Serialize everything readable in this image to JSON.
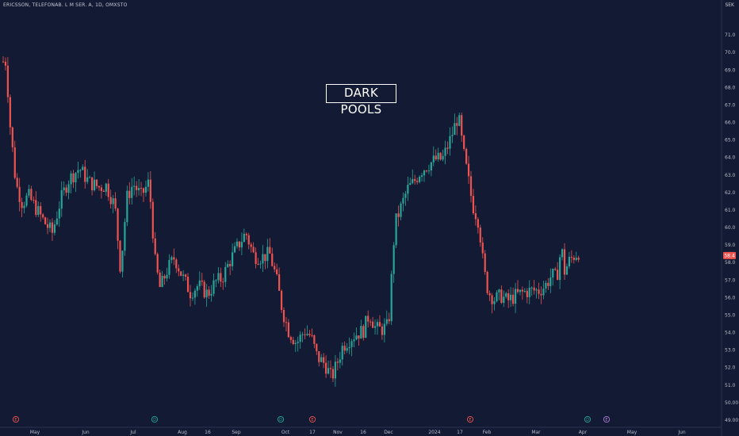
{
  "header": {
    "symbol_line": "ERICSSON, TELEFONAB. L M SER. A, 1D, OMXSTO",
    "currency": "SEK"
  },
  "annotation": {
    "text": "DARK POOLS"
  },
  "last_price": {
    "label": "58.4",
    "value": 58.4,
    "color": "#ef5350"
  },
  "colors": {
    "up": "#26a69a",
    "down": "#ef5350",
    "background": "#131a33"
  },
  "chart_data": {
    "type": "candlestick",
    "title": "",
    "xlabel": "",
    "ylabel": "",
    "ylim": [
      49,
      72
    ],
    "yticks": [
      49.0,
      50.0,
      51.0,
      52.0,
      53.0,
      54.0,
      55.0,
      56.0,
      57.0,
      58.0,
      59.0,
      60.0,
      61.0,
      62.0,
      63.0,
      64.0,
      65.0,
      66.0,
      67.0,
      68.0,
      69.0,
      70.0,
      71.0
    ],
    "ytick_labels": [
      "49.00",
      "50.00",
      "51.0",
      "52.0",
      "53.0",
      "54.0",
      "55.0",
      "56.0",
      "57.0",
      "58.0",
      "59.0",
      "60.0",
      "61.0",
      "62.0",
      "63.0",
      "64.0",
      "65.0",
      "66.0",
      "67.0",
      "68.0",
      "69.0",
      "70.0",
      "71.0"
    ],
    "xticks": [
      {
        "label": "May",
        "px": 44
      },
      {
        "label": "Jun",
        "px": 108
      },
      {
        "label": "Jul",
        "px": 168
      },
      {
        "label": "Aug",
        "px": 230
      },
      {
        "label": "16",
        "px": 262
      },
      {
        "label": "Sep",
        "px": 298
      },
      {
        "label": "Oct",
        "px": 360
      },
      {
        "label": "17",
        "px": 394
      },
      {
        "label": "Nov",
        "px": 426
      },
      {
        "label": "16",
        "px": 458
      },
      {
        "label": "Dec",
        "px": 490
      },
      {
        "label": "2024",
        "px": 548
      },
      {
        "label": "17",
        "px": 580
      },
      {
        "label": "Feb",
        "px": 614
      },
      {
        "label": "Mar",
        "px": 676
      },
      {
        "label": "Apr",
        "px": 735
      },
      {
        "label": "May",
        "px": 797
      },
      {
        "label": "Jun",
        "px": 860
      }
    ],
    "event_markers": [
      {
        "type": "E",
        "px": 20,
        "color": "#ef5350"
      },
      {
        "type": "D",
        "px": 195,
        "color": "#26a69a"
      },
      {
        "type": "D",
        "px": 354,
        "color": "#26a69a"
      },
      {
        "type": "E",
        "px": 394,
        "color": "#ef5350"
      },
      {
        "type": "E",
        "px": 593,
        "color": "#ef5350"
      },
      {
        "type": "D",
        "px": 741,
        "color": "#26a69a"
      },
      {
        "type": "E",
        "px": 765,
        "color": "#b07ad9"
      }
    ],
    "anchors": [
      [
        0,
        68.2
      ],
      [
        5,
        69.8
      ],
      [
        8,
        69.3
      ],
      [
        12,
        66.2
      ],
      [
        20,
        62.5
      ],
      [
        28,
        61.4
      ],
      [
        36,
        61.8
      ],
      [
        44,
        61.2
      ],
      [
        56,
        60.3
      ],
      [
        66,
        59.7
      ],
      [
        76,
        61.5
      ],
      [
        86,
        62.7
      ],
      [
        100,
        63.4
      ],
      [
        112,
        62.6
      ],
      [
        125,
        62.3
      ],
      [
        134,
        62.4
      ],
      [
        145,
        61.2
      ],
      [
        152,
        57.6
      ],
      [
        160,
        61.7
      ],
      [
        168,
        62.5
      ],
      [
        178,
        61.8
      ],
      [
        188,
        62.6
      ],
      [
        196,
        57.9
      ],
      [
        202,
        56.5
      ],
      [
        210,
        57.5
      ],
      [
        220,
        58.3
      ],
      [
        230,
        57.2
      ],
      [
        240,
        56.3
      ],
      [
        250,
        56.7
      ],
      [
        262,
        56.2
      ],
      [
        272,
        56.9
      ],
      [
        280,
        57.1
      ],
      [
        290,
        58.1
      ],
      [
        302,
        59.1
      ],
      [
        310,
        59.7
      ],
      [
        320,
        58.4
      ],
      [
        330,
        58.3
      ],
      [
        340,
        58.5
      ],
      [
        348,
        57.2
      ],
      [
        356,
        55.3
      ],
      [
        364,
        54.1
      ],
      [
        374,
        53.4
      ],
      [
        384,
        54.1
      ],
      [
        392,
        53.8
      ],
      [
        400,
        52.6
      ],
      [
        410,
        52.2
      ],
      [
        418,
        51.4
      ],
      [
        424,
        52.1
      ],
      [
        432,
        53.2
      ],
      [
        440,
        53.6
      ],
      [
        448,
        53.9
      ],
      [
        458,
        54.1
      ],
      [
        466,
        55.1
      ],
      [
        474,
        54.2
      ],
      [
        482,
        54.2
      ],
      [
        490,
        54.4
      ],
      [
        498,
        60.2
      ],
      [
        506,
        61.2
      ],
      [
        514,
        62.2
      ],
      [
        522,
        62.6
      ],
      [
        530,
        63.2
      ],
      [
        540,
        63.6
      ],
      [
        550,
        63.9
      ],
      [
        558,
        63.9
      ],
      [
        566,
        64.8
      ],
      [
        572,
        65.6
      ],
      [
        578,
        66.4
      ],
      [
        584,
        64.4
      ],
      [
        590,
        62.9
      ],
      [
        596,
        61.3
      ],
      [
        604,
        60.3
      ],
      [
        610,
        57.6
      ],
      [
        616,
        56.3
      ],
      [
        624,
        55.9
      ],
      [
        632,
        56.1
      ],
      [
        640,
        55.8
      ],
      [
        650,
        56.1
      ],
      [
        660,
        56.3
      ],
      [
        670,
        56.4
      ],
      [
        680,
        56.4
      ],
      [
        688,
        56.7
      ],
      [
        696,
        57.3
      ],
      [
        702,
        57.1
      ],
      [
        708,
        58.9
      ],
      [
        712,
        57.5
      ],
      [
        718,
        58.1
      ],
      [
        724,
        58.4
      ],
      [
        730,
        58.6
      ]
    ]
  }
}
